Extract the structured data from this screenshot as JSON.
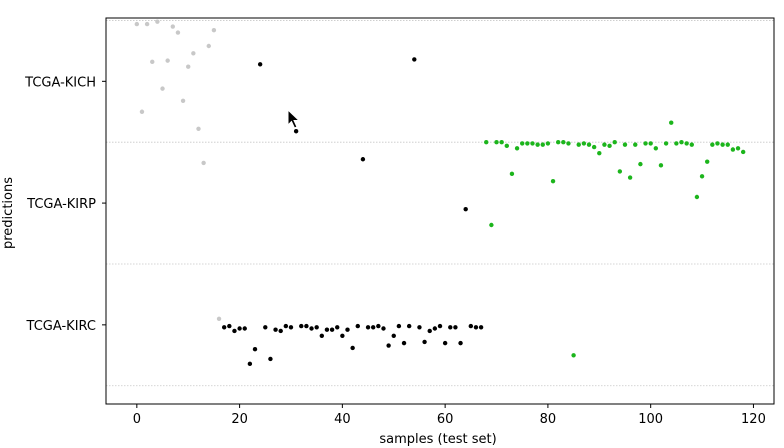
{
  "chart_data": {
    "type": "scatter",
    "xlabel": "samples (test set)",
    "ylabel": "predictions",
    "xlim": [
      -6,
      124
    ],
    "ylim": [
      -0.65,
      2.52
    ],
    "x_ticks": [
      0,
      20,
      40,
      60,
      80,
      100,
      120
    ],
    "y_ticks": [
      {
        "value": 2,
        "label": "TCGA-KICH"
      },
      {
        "value": 1,
        "label": "TCGA-KIRP"
      },
      {
        "value": 0,
        "label": "TCGA-KIRC"
      }
    ],
    "gridlines_y": [
      2.5,
      1.5,
      0.5,
      -0.5
    ],
    "grid": "horizontal dotted",
    "series": [
      {
        "color": "#c8c8c8",
        "points": [
          [
            0,
            2.47
          ],
          [
            1,
            1.75
          ],
          [
            2,
            2.47
          ],
          [
            3,
            2.16
          ],
          [
            4,
            2.49
          ],
          [
            5,
            1.94
          ],
          [
            6,
            2.17
          ],
          [
            7,
            2.45
          ],
          [
            8,
            2.4
          ],
          [
            9,
            1.84
          ],
          [
            10,
            2.12
          ],
          [
            11,
            2.23
          ],
          [
            12,
            1.61
          ],
          [
            13,
            1.33
          ],
          [
            14,
            2.29
          ],
          [
            15,
            2.42
          ],
          [
            16,
            0.05
          ]
        ]
      },
      {
        "color": "#000000",
        "points": [
          [
            17,
            -0.02
          ],
          [
            18,
            -0.01
          ],
          [
            19,
            -0.05
          ],
          [
            20,
            -0.03
          ],
          [
            21,
            -0.03
          ],
          [
            22,
            -0.32
          ],
          [
            23,
            -0.2
          ],
          [
            24,
            2.14
          ],
          [
            25,
            -0.02
          ],
          [
            26,
            -0.28
          ],
          [
            27,
            -0.04
          ],
          [
            28,
            -0.05
          ],
          [
            29,
            -0.01
          ],
          [
            30,
            -0.02
          ],
          [
            31,
            1.59
          ],
          [
            32,
            -0.01
          ],
          [
            33,
            -0.01
          ],
          [
            34,
            -0.03
          ],
          [
            35,
            -0.02
          ],
          [
            36,
            -0.09
          ],
          [
            37,
            -0.04
          ],
          [
            38,
            -0.04
          ],
          [
            39,
            -0.02
          ],
          [
            40,
            -0.09
          ],
          [
            41,
            -0.04
          ],
          [
            42,
            -0.19
          ],
          [
            43,
            -0.01
          ],
          [
            44,
            1.36
          ],
          [
            45,
            -0.02
          ],
          [
            46,
            -0.02
          ],
          [
            47,
            -0.01
          ],
          [
            48,
            -0.03
          ],
          [
            49,
            -0.17
          ],
          [
            50,
            -0.09
          ],
          [
            51,
            -0.01
          ],
          [
            52,
            -0.15
          ],
          [
            53,
            -0.01
          ],
          [
            54,
            2.18
          ],
          [
            55,
            -0.02
          ],
          [
            56,
            -0.14
          ],
          [
            57,
            -0.05
          ],
          [
            58,
            -0.03
          ],
          [
            59,
            -0.01
          ],
          [
            60,
            -0.15
          ],
          [
            61,
            -0.02
          ],
          [
            62,
            -0.02
          ],
          [
            63,
            -0.15
          ],
          [
            64,
            0.95
          ],
          [
            65,
            -0.01
          ],
          [
            66,
            -0.02
          ],
          [
            67,
            -0.02
          ]
        ]
      },
      {
        "color": "#1cb51c",
        "points": [
          [
            68,
            1.5
          ],
          [
            69,
            0.82
          ],
          [
            70,
            1.5
          ],
          [
            71,
            1.5
          ],
          [
            72,
            1.47
          ],
          [
            73,
            1.24
          ],
          [
            74,
            1.45
          ],
          [
            75,
            1.49
          ],
          [
            76,
            1.49
          ],
          [
            77,
            1.49
          ],
          [
            78,
            1.48
          ],
          [
            79,
            1.48
          ],
          [
            80,
            1.49
          ],
          [
            81,
            1.18
          ],
          [
            82,
            1.5
          ],
          [
            83,
            1.5
          ],
          [
            84,
            1.49
          ],
          [
            85,
            -0.25
          ],
          [
            86,
            1.48
          ],
          [
            87,
            1.49
          ],
          [
            88,
            1.48
          ],
          [
            89,
            1.46
          ],
          [
            90,
            1.41
          ],
          [
            91,
            1.48
          ],
          [
            92,
            1.47
          ],
          [
            93,
            1.5
          ],
          [
            94,
            1.26
          ],
          [
            95,
            1.48
          ],
          [
            96,
            1.21
          ],
          [
            97,
            1.48
          ],
          [
            98,
            1.32
          ],
          [
            99,
            1.49
          ],
          [
            100,
            1.49
          ],
          [
            101,
            1.45
          ],
          [
            102,
            1.31
          ],
          [
            103,
            1.49
          ],
          [
            104,
            1.66
          ],
          [
            105,
            1.49
          ],
          [
            106,
            1.5
          ],
          [
            107,
            1.49
          ],
          [
            108,
            1.48
          ],
          [
            109,
            1.05
          ],
          [
            110,
            1.22
          ],
          [
            111,
            1.34
          ],
          [
            112,
            1.48
          ],
          [
            113,
            1.49
          ],
          [
            114,
            1.48
          ],
          [
            115,
            1.48
          ],
          [
            116,
            1.44
          ],
          [
            117,
            1.45
          ],
          [
            118,
            1.42
          ]
        ]
      }
    ]
  }
}
